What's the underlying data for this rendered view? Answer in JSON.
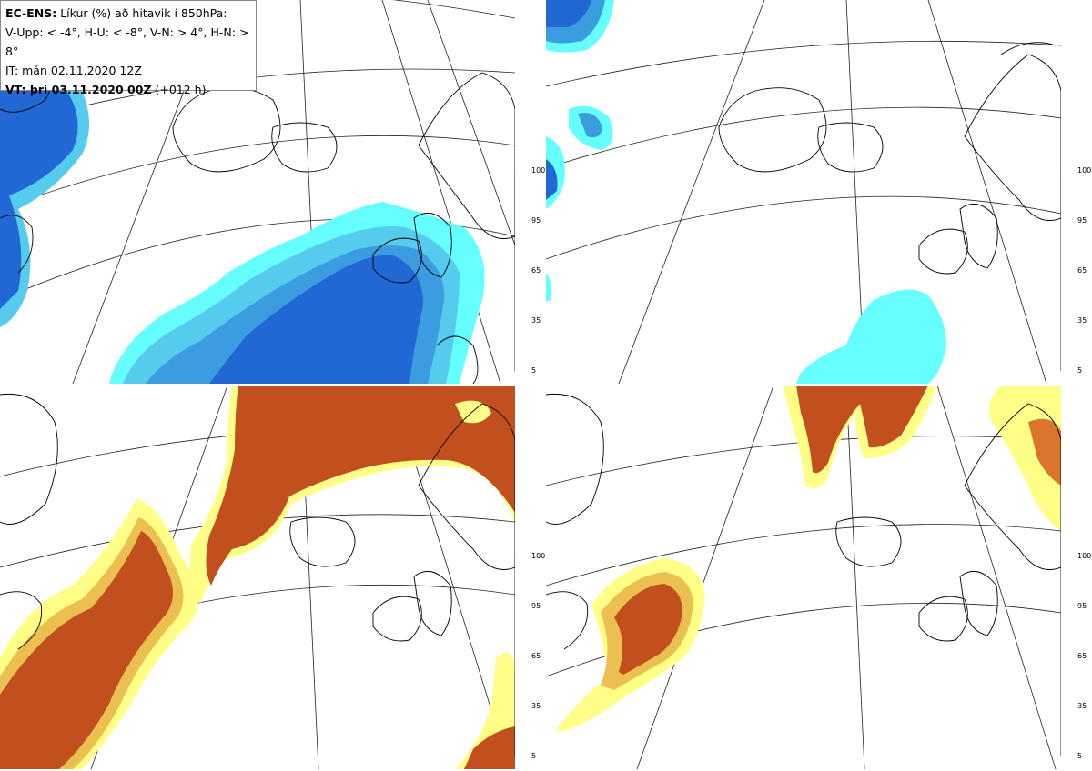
{
  "header": {
    "model": "EC-ENS:",
    "title_rest": "Líkur (%) að hitavik í 850hPa:",
    "categories_line": "V-Upp: < -4°, H-U: < -8°, V-N: > 4°, H-N: > 8°",
    "init_time": "IT: mán 02.11.2020 12Z",
    "valid_label": "VT: þri 03.11.2020 00Z",
    "lead": "(+012 h)"
  },
  "panels": [
    {
      "id": "V-Upp",
      "threshold": "< -4°",
      "scheme": "cold",
      "position": "top-left"
    },
    {
      "id": "H-U",
      "threshold": "< -8°",
      "scheme": "cold",
      "position": "top-right"
    },
    {
      "id": "V-N",
      "threshold": "> 4°",
      "scheme": "warm",
      "position": "bottom-left"
    },
    {
      "id": "H-N",
      "threshold": "> 8°",
      "scheme": "warm",
      "position": "bottom-right"
    }
  ],
  "colorbars": {
    "ticks": [
      "100",
      "95",
      "65",
      "35",
      "5"
    ],
    "levels": [
      5,
      35,
      65,
      95,
      100
    ],
    "cold_colors": [
      "#66ffff",
      "#55ccee",
      "#3b9ce0",
      "#2268d4"
    ],
    "warm_colors": [
      "#ffff88",
      "#ecc050",
      "#d9762c",
      "#c2501e"
    ]
  },
  "colors": {
    "coast": "#000000",
    "graticule": "#222222"
  }
}
